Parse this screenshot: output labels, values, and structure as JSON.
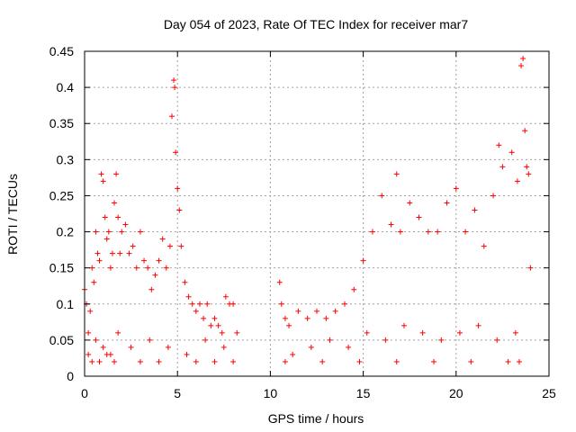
{
  "chart_data": {
    "type": "scatter",
    "title": "Day 054 of 2023, Rate Of TEC Index for receiver mar7",
    "xlabel": "GPS time / hours",
    "ylabel": "ROTI / TECUs",
    "xlim": [
      0,
      25
    ],
    "ylim": [
      0,
      0.45
    ],
    "x_ticks": [
      0,
      5,
      10,
      15,
      20,
      25
    ],
    "y_ticks": [
      0,
      0.05,
      0.1,
      0.15,
      0.2,
      0.25,
      0.3,
      0.35,
      0.4,
      0.45
    ],
    "x_tick_labels": [
      "0",
      "5",
      "10",
      "15",
      "20",
      "25"
    ],
    "y_tick_labels": [
      "0",
      "0.05",
      "0.1",
      "0.15",
      "0.2",
      "0.25",
      "0.3",
      "0.35",
      "0.4",
      "0.45"
    ],
    "grid": true,
    "marker": "+",
    "color": "#ff0000",
    "series": [
      {
        "x": [
          0.0,
          0.1,
          0.2,
          0.3,
          0.4,
          0.5,
          0.6,
          0.7,
          0.8,
          0.9,
          1.0,
          1.1,
          1.2,
          1.3,
          1.4,
          1.5,
          1.6,
          1.7,
          1.8,
          1.9,
          2.0,
          2.2,
          2.4,
          2.6,
          2.8,
          3.0,
          3.2,
          3.4,
          3.6,
          3.8,
          4.0,
          4.2,
          4.4,
          4.6,
          4.7,
          4.8,
          4.85,
          4.9,
          5.0,
          5.1,
          5.2,
          5.4,
          5.6,
          5.8,
          6.0,
          6.2,
          6.4,
          6.6,
          6.8,
          7.0,
          7.2,
          7.4,
          7.6,
          7.8,
          8.0,
          8.2,
          10.5,
          10.6,
          10.8,
          11.0,
          11.5,
          12.0,
          12.5,
          13.0,
          13.5,
          14.0,
          14.5,
          15.0,
          15.5,
          16.0,
          16.5,
          16.8,
          17.0,
          17.5,
          18.0,
          18.5,
          19.0,
          19.5,
          20.0,
          20.5,
          21.0,
          21.5,
          22.0,
          22.3,
          22.5,
          23.0,
          23.3,
          23.5,
          23.6,
          23.7,
          23.8,
          23.9,
          24.0,
          0.2,
          0.6,
          1.0,
          1.4,
          1.8,
          2.5,
          3.5,
          4.5,
          5.5,
          6.5,
          7.5,
          11.2,
          12.2,
          13.2,
          14.2,
          15.2,
          16.2,
          17.2,
          18.2,
          19.2,
          20.2,
          21.2,
          22.2,
          23.2,
          0.4,
          0.8,
          1.2,
          1.6,
          3.0,
          4.0,
          6.0,
          7.0,
          8.0,
          10.8,
          12.8,
          14.8,
          16.8,
          18.8,
          20.8,
          22.8,
          23.4
        ],
        "y": [
          0.12,
          0.1,
          0.06,
          0.09,
          0.15,
          0.13,
          0.2,
          0.17,
          0.16,
          0.28,
          0.27,
          0.22,
          0.19,
          0.2,
          0.15,
          0.17,
          0.24,
          0.28,
          0.22,
          0.17,
          0.2,
          0.21,
          0.17,
          0.18,
          0.15,
          0.2,
          0.16,
          0.15,
          0.12,
          0.14,
          0.16,
          0.19,
          0.15,
          0.18,
          0.36,
          0.41,
          0.4,
          0.31,
          0.26,
          0.23,
          0.18,
          0.13,
          0.11,
          0.1,
          0.09,
          0.1,
          0.08,
          0.1,
          0.07,
          0.08,
          0.07,
          0.06,
          0.11,
          0.1,
          0.1,
          0.06,
          0.13,
          0.1,
          0.08,
          0.07,
          0.09,
          0.08,
          0.09,
          0.08,
          0.09,
          0.1,
          0.12,
          0.16,
          0.2,
          0.25,
          0.21,
          0.28,
          0.2,
          0.24,
          0.22,
          0.2,
          0.2,
          0.24,
          0.26,
          0.2,
          0.23,
          0.18,
          0.25,
          0.32,
          0.29,
          0.31,
          0.27,
          0.43,
          0.44,
          0.34,
          0.29,
          0.28,
          0.15,
          0.03,
          0.05,
          0.04,
          0.03,
          0.06,
          0.04,
          0.05,
          0.04,
          0.03,
          0.05,
          0.04,
          0.03,
          0.04,
          0.05,
          0.04,
          0.06,
          0.05,
          0.07,
          0.06,
          0.05,
          0.06,
          0.07,
          0.05,
          0.06,
          0.02,
          0.02,
          0.03,
          0.02,
          0.02,
          0.02,
          0.02,
          0.02,
          0.02,
          0.02,
          0.02,
          0.02,
          0.02,
          0.02,
          0.02,
          0.02,
          0.02
        ]
      }
    ]
  }
}
